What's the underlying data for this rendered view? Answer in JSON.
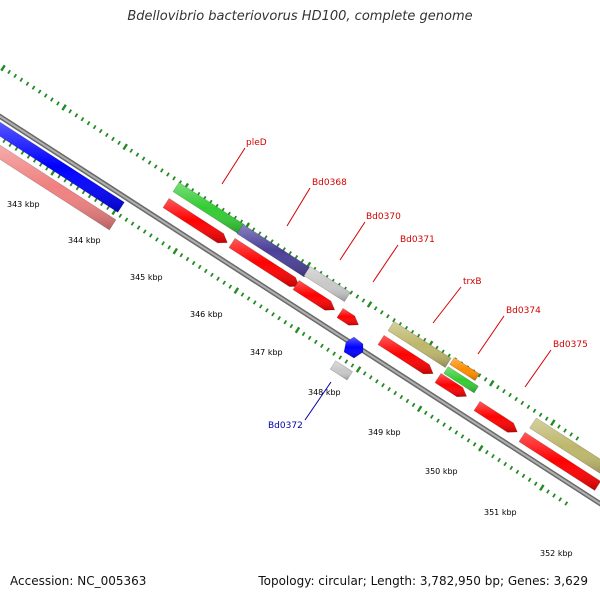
{
  "title": "Bdellovibrio bacteriovorus HD100, complete genome",
  "footer": {
    "accession": "Accession: NC_005363",
    "topology": "Topology: circular;",
    "length": "Length: 3,782,950 bp;",
    "genes": "Genes: 3,629"
  },
  "ruler": {
    "ticks": [
      "343 kbp",
      "344 kbp",
      "345 kbp",
      "346 kbp",
      "347 kbp",
      "348 kbp",
      "349 kbp",
      "350 kbp",
      "351 kbp",
      "352 kbp"
    ]
  },
  "gene_labels": [
    {
      "name": "pleD",
      "color": "#d40000"
    },
    {
      "name": "Bd0368",
      "color": "#d40000"
    },
    {
      "name": "Bd0370",
      "color": "#d40000"
    },
    {
      "name": "Bd0371",
      "color": "#d40000"
    },
    {
      "name": "trxB",
      "color": "#d40000"
    },
    {
      "name": "Bd0374",
      "color": "#d40000"
    },
    {
      "name": "Bd0375",
      "color": "#d40000"
    },
    {
      "name": "Bd0372",
      "color": "#0000aa"
    }
  ],
  "colors": {
    "backbone": "#8a8a8a",
    "cds_red": "#ff0000",
    "blue": "#0000ff",
    "pink": "#f08080",
    "green": "#33cc33",
    "purple": "#4a3f99",
    "gray": "#c8c8c8",
    "khaki": "#bdb76b",
    "orange": "#ff8c00",
    "tick_green": "#228b22"
  }
}
